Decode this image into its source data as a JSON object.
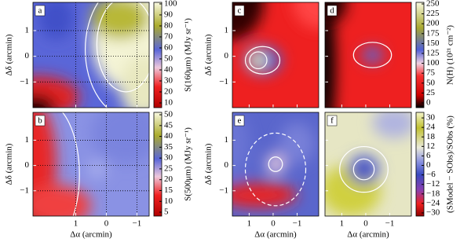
{
  "chart_data": [
    {
      "type": "heatmap",
      "panel_label": "a",
      "ylabel": "Δδ (arcmin)",
      "xlim": [
        2.4,
        -1.4
      ],
      "ylim": [
        -2,
        2.1
      ],
      "xticks": [
        1,
        0,
        -1
      ],
      "yticks": [
        1,
        0,
        {
          "value": -1,
          "label": "−1"
        }
      ],
      "grid": true
    },
    {
      "type": "heatmap",
      "panel_label": "b",
      "ylabel": "Δδ (arcmin)",
      "xlabel": "Δα (arcmin)",
      "xlim": [
        2.4,
        -1.4
      ],
      "ylim": [
        -2,
        2.1
      ],
      "xticks": [
        1,
        0,
        {
          "value": -1,
          "label": "−1"
        }
      ],
      "yticks": [
        1,
        0,
        {
          "value": -1,
          "label": "−1"
        }
      ],
      "grid": true
    },
    {
      "type": "heatmap",
      "panel_label": "c",
      "ylabel": "Δδ (arcmin)",
      "xlim": [
        1.7,
        -1.9
      ],
      "ylim": [
        -2,
        2.1
      ],
      "xticks": [
        1,
        0,
        -1
      ],
      "yticks": [
        1,
        0,
        {
          "value": -1,
          "label": "−1"
        }
      ],
      "grid": false
    },
    {
      "type": "heatmap",
      "panel_label": "d",
      "xlim": [
        1.7,
        -1.9
      ],
      "ylim": [
        -2,
        2.1
      ],
      "xticks": [
        1,
        0,
        -1
      ],
      "yticks": [
        1,
        0,
        -1
      ],
      "grid": false
    },
    {
      "type": "heatmap",
      "panel_label": "e",
      "ylabel": "Δδ (arcmin)",
      "xlabel": "Δα (arcmin)",
      "xlim": [
        1.7,
        -1.9
      ],
      "ylim": [
        -2,
        2.1
      ],
      "xticks": [
        1,
        0,
        {
          "value": -1,
          "label": "−1"
        }
      ],
      "yticks": [
        1,
        0,
        {
          "value": -1,
          "label": "−1"
        }
      ],
      "grid": false
    },
    {
      "type": "heatmap",
      "panel_label": "f",
      "xlabel": "Δα (arcmin)",
      "xlim": [
        1.7,
        -1.9
      ],
      "ylim": [
        -2,
        2.1
      ],
      "xticks": [
        1,
        0,
        {
          "value": -1,
          "label": "−1"
        }
      ],
      "yticks": [
        1,
        0,
        -1
      ],
      "grid": false
    }
  ],
  "colorbars": [
    {
      "label": "S(160μm) (MJy sr⁻¹)",
      "lim": [
        5.7,
        101.4
      ],
      "ticks": [
        10,
        20,
        30,
        40,
        50,
        60,
        70,
        80,
        90,
        100
      ]
    },
    {
      "label": "S(500μm) (MJy sr⁻¹)",
      "lim": [
        3.2,
        51.1
      ],
      "ticks": [
        5,
        10,
        15,
        20,
        25,
        30,
        35,
        40,
        45,
        50
      ]
    },
    {
      "label": "N(H) (10²¹ cm⁻²)",
      "lim": [
        -12,
        254
      ],
      "ticks": [
        0,
        25,
        50,
        75,
        100,
        125,
        150,
        175,
        200,
        225,
        250
      ]
    },
    {
      "label": "(SModel − SObs)/SObs (%)",
      "lim": [
        -32,
        33.5
      ],
      "ticks": [
        {
          "value": -30,
          "label": "−30"
        },
        {
          "value": -24,
          "label": "−24"
        },
        {
          "value": -18,
          "label": "−18"
        },
        {
          "value": -12,
          "label": "−12"
        },
        {
          "value": -6,
          "label": "−6"
        },
        0,
        6,
        12,
        18,
        24,
        30
      ]
    }
  ]
}
